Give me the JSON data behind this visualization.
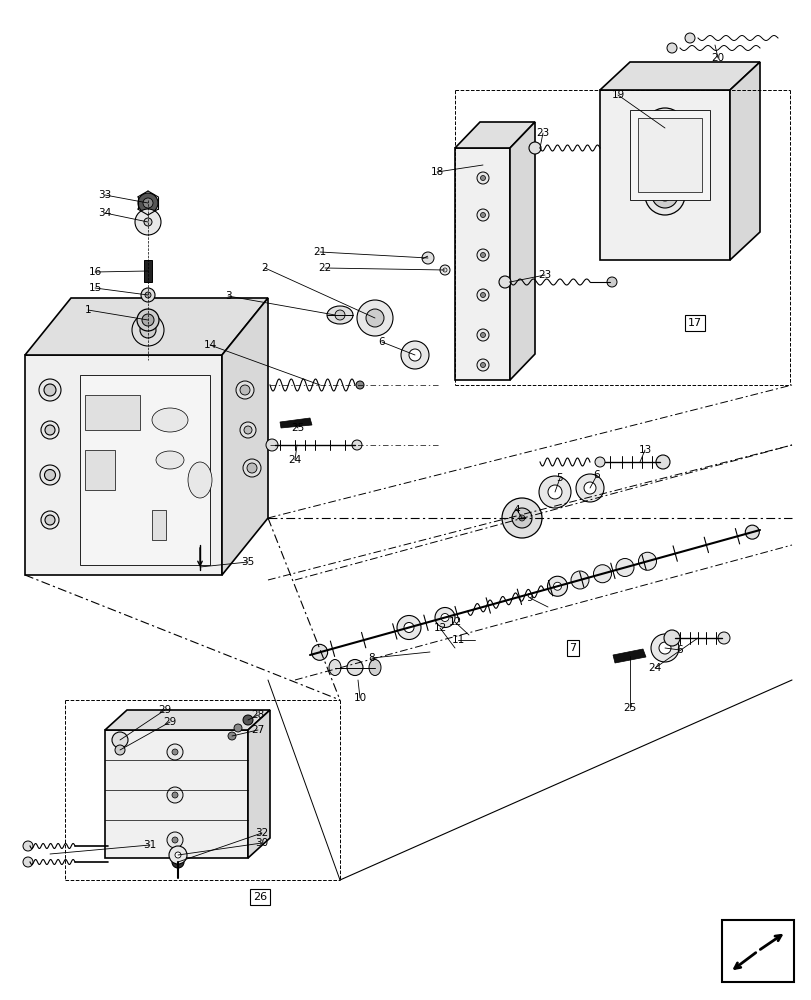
{
  "bg_color": "#ffffff",
  "lc": "#000000",
  "figsize": [
    8.12,
    10.0
  ],
  "dpi": 100,
  "lw": 0.8,
  "lw_thick": 1.2
}
